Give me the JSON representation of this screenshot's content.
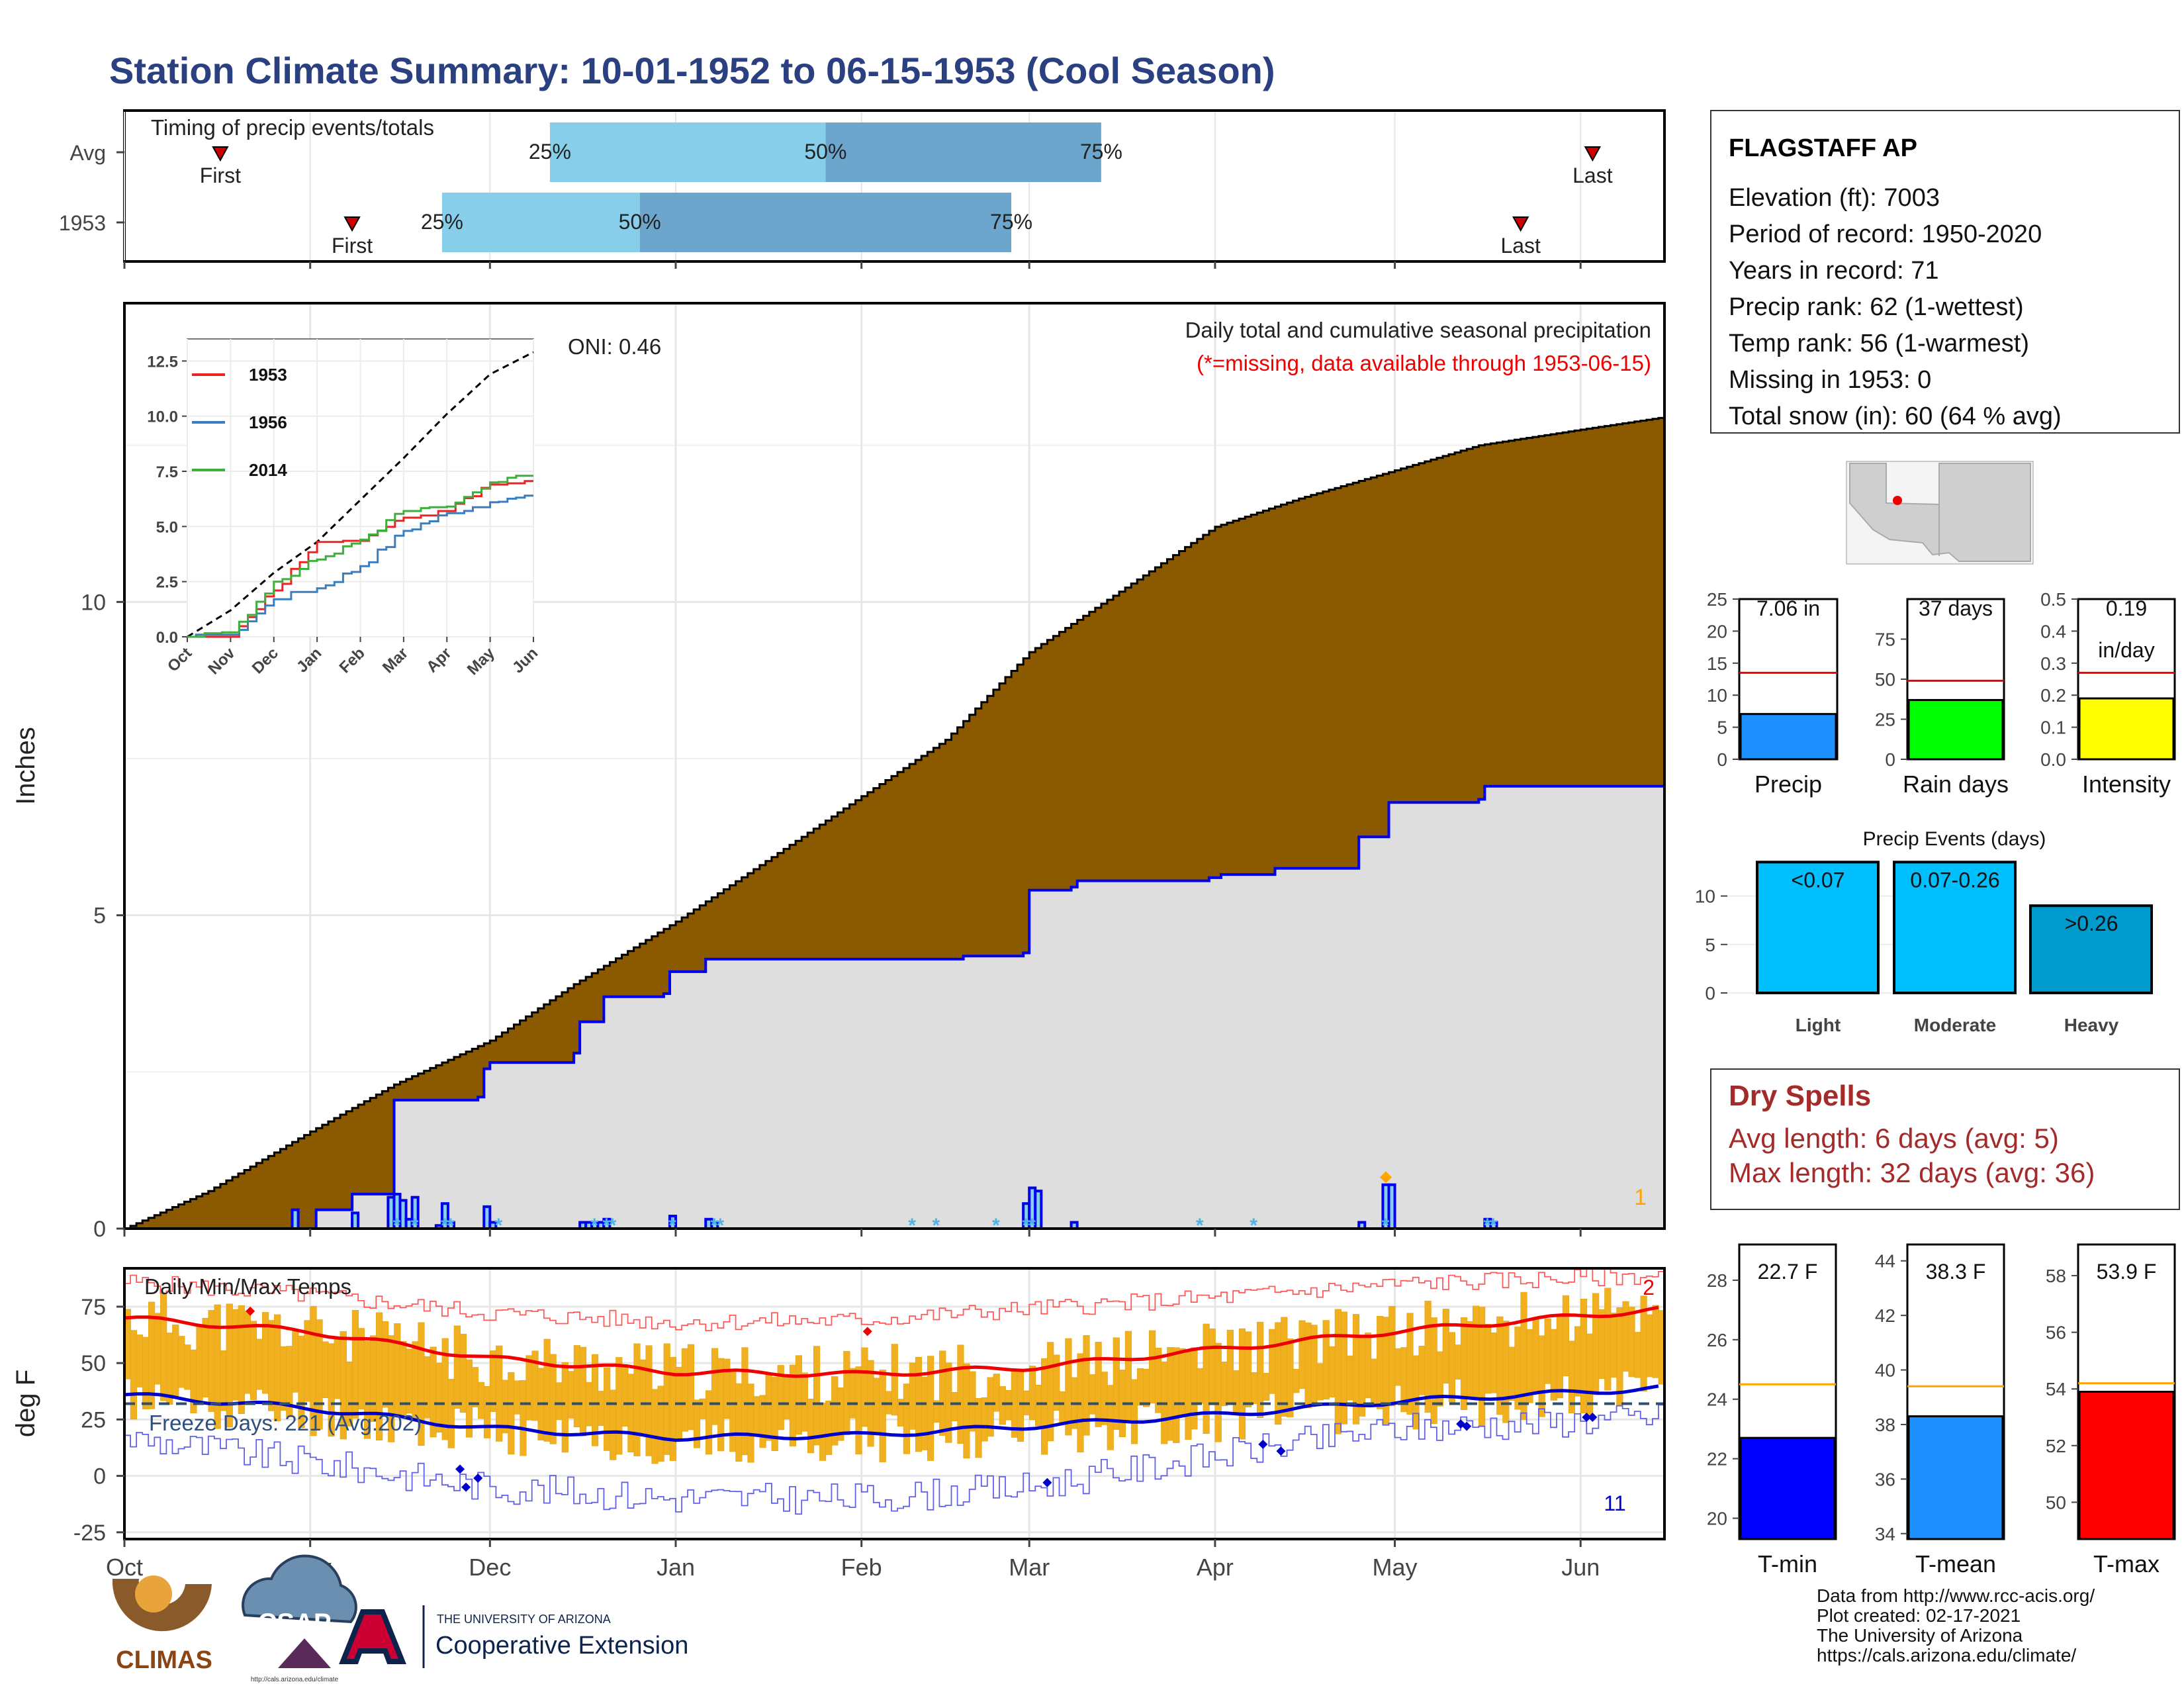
{
  "title": "Station Climate Summary: 10-01-1952 to 06-15-1953 (Cool Season)",
  "timing": {
    "heading": "Timing of precip events/totals",
    "rows": [
      {
        "label": "Avg",
        "first_day": 16,
        "last_day": 245,
        "q25": 71,
        "q50": 117,
        "q75": 163
      },
      {
        "label": "1953",
        "first_day": 38,
        "last_day": 233,
        "q25": 53,
        "q50": 86,
        "q75": 148
      }
    ],
    "first_label": "First",
    "last_label": "Last",
    "q25_label": "25%",
    "q50_label": "50%",
    "q75_label": "75%"
  },
  "precip": {
    "caption1": "Daily total and cumulative seasonal precipitation",
    "caption2": "(*=missing, data available through 1953-06-15)",
    "oni": "ONI: 0.46",
    "ylabel": "Inches",
    "corner_count": "1",
    "yticks": [
      "0",
      "5",
      "10"
    ]
  },
  "inset": {
    "legend": [
      "1953",
      "1956",
      "2014"
    ],
    "yticks": [
      "0.0",
      "2.5",
      "5.0",
      "7.5",
      "10.0",
      "12.5"
    ],
    "xticks": [
      "Oct",
      "Nov",
      "Dec",
      "Jan",
      "Feb",
      "Mar",
      "Apr",
      "May",
      "Jun"
    ]
  },
  "temps": {
    "heading": "Daily Min/Max Temps",
    "ylabel": "deg F",
    "freeze": "Freeze Days: 221 (Avg:202)",
    "count_hi": "2",
    "count_lo": "11",
    "yticks": [
      "-25",
      "0",
      "25",
      "50",
      "75"
    ]
  },
  "xaxis": [
    "Oct",
    "Nov",
    "Dec",
    "Jan",
    "Feb",
    "Mar",
    "Apr",
    "May",
    "Jun"
  ],
  "station": {
    "name": "FLAGSTAFF AP",
    "lines": [
      "Elevation (ft): 7003",
      "Period of record: 1950-2020",
      "Years in record: 71",
      "Precip rank: 62 (1-wettest)",
      "Temp rank: 56 (1-warmest)",
      "Missing in 1953: 0",
      "Total snow (in): 60 (64 % avg)"
    ]
  },
  "mini_bars": [
    {
      "value_label": "7.06 in",
      "label": "Precip",
      "value": 7.06,
      "avg": 13.5,
      "ymax": 25,
      "yticks": [
        "0",
        "5",
        "10",
        "15",
        "20",
        "25"
      ],
      "color": "#1E90FF"
    },
    {
      "value_label": "37 days",
      "label": "Rain days",
      "value": 37,
      "avg": 49,
      "ymax": 100,
      "yticks": [
        "0",
        "25",
        "50",
        "75"
      ],
      "color": "#00FF00"
    },
    {
      "value_label": "0.19",
      "value_label2": "in/day",
      "label": "Intensity",
      "value": 0.19,
      "avg": 0.27,
      "ymax": 0.5,
      "yticks": [
        "0.0",
        "0.1",
        "0.2",
        "0.3",
        "0.4",
        "0.5"
      ],
      "color": "#FFFF00"
    }
  ],
  "events": {
    "title": "Precip Events (days)",
    "bars": [
      {
        "label": "Light",
        "value": 13.5,
        "text": "<0.07",
        "color": "#00BFFF"
      },
      {
        "label": "Moderate",
        "value": 13.5,
        "text": "0.07-0.26",
        "color": "#00BFFF"
      },
      {
        "label": "Heavy",
        "value": 9,
        "text": ">0.26",
        "color": "#009ACD"
      }
    ],
    "yticks": [
      "0",
      "5",
      "10"
    ]
  },
  "dry": {
    "title": "Dry Spells",
    "avg": "Avg length: 6 days (avg: 5)",
    "max": "Max length: 32 days (avg: 36)"
  },
  "temp_bars": [
    {
      "value_label": "22.7 F",
      "label": "T-min",
      "value": 22.7,
      "avg": 24.5,
      "ymin": 19.3,
      "ymax": 29.2,
      "yticks": [
        "20",
        "22",
        "24",
        "26",
        "28"
      ],
      "color": "#0000FF"
    },
    {
      "value_label": "38.3 F",
      "label": "T-mean",
      "value": 38.3,
      "avg": 39.4,
      "ymin": 33.8,
      "ymax": 44.6,
      "yticks": [
        "34",
        "36",
        "38",
        "40",
        "42",
        "44"
      ],
      "color": "#1E90FF"
    },
    {
      "value_label": "53.9 F",
      "label": "T-max",
      "value": 53.9,
      "avg": 54.2,
      "ymin": 48.7,
      "ymax": 59.1,
      "yticks": [
        "50",
        "52",
        "54",
        "56",
        "58"
      ],
      "color": "#FF0000"
    }
  ],
  "footer": [
    "Data from http://www.rcc-acis.org/",
    "Plot created: 02-17-2021",
    "The University of Arizona",
    "https://cals.arizona.edu/climate/"
  ],
  "logos": {
    "climas": "CLIMAS",
    "csap": "CSAP",
    "csap_url": "http://cals.arizona.edu/climate",
    "ua_small": "THE UNIVERSITY OF ARIZONA",
    "ua_big": "Cooperative Extension"
  },
  "chart_data": {
    "type": "area",
    "title": "Station Climate Summary: 10-01-1952 to 06-15-1953 (Cool Season)",
    "x": [
      "1952-10-01",
      "1952-10-15",
      "1952-11-01",
      "1952-11-15",
      "1952-12-01",
      "1952-12-15",
      "1953-01-01",
      "1953-01-15",
      "1953-02-01",
      "1953-02-15",
      "1953-03-01",
      "1953-03-15",
      "1953-04-01",
      "1953-04-15",
      "1953-05-01",
      "1953-05-15",
      "1953-06-01",
      "1953-06-15"
    ],
    "series": [
      {
        "name": "",
        "values": [
          0.0,
          0.6,
          1.55,
          2.3,
          3.0,
          3.9,
          4.9,
          5.8,
          6.9,
          7.8,
          9.2,
          10.1,
          11.2,
          11.65,
          12.1,
          12.5,
          12.75,
          12.95
        ]
      },
      {
        "name": "1953",
        "values": [
          0.0,
          0.0,
          0.0,
          2.1,
          3.1,
          3.35,
          4.3,
          4.3,
          4.35,
          4.35,
          5.4,
          5.5,
          5.65,
          5.75,
          6.8,
          7.05,
          7.06,
          7.06
        ]
      }
    ],
    "ylabel": "Inches",
    "ylim": [
      0,
      13.5
    ],
    "inset": {
      "x": [
        "Oct",
        "Nov",
        "Dec",
        "Jan",
        "Feb",
        "Mar",
        "Apr",
        "May",
        "Jun"
      ],
      "series": [
        {
          "name": "",
          "values": [
            0.0,
            1.2,
            2.9,
            4.3,
            6.2,
            8.1,
            10.1,
            11.9,
            12.9
          ]
        },
        {
          "name": "1953",
          "values": [
            0.0,
            0.0,
            2.1,
            4.3,
            4.35,
            5.4,
            5.7,
            6.9,
            7.06
          ]
        },
        {
          "name": "1956",
          "values": [
            0.0,
            0.1,
            1.7,
            2.2,
            3.2,
            4.8,
            5.6,
            6.1,
            6.4
          ]
        },
        {
          "name": "2014",
          "values": [
            0.0,
            0.2,
            2.5,
            3.5,
            4.4,
            5.7,
            5.9,
            7.0,
            7.3
          ]
        }
      ],
      "ylim": [
        0,
        13.5
      ]
    },
    "temperature": {
      "ylabel": "deg F",
      "ylim": [
        -28,
        92
      ],
      "x": [
        "Oct",
        "Nov",
        "Dec",
        "Jan",
        "Feb",
        "Mar",
        "Apr",
        "May",
        "Jun"
      ],
      "avg_max": [
        70,
        64,
        52,
        46,
        45,
        48,
        56,
        64,
        74
      ],
      "avg_min": [
        36,
        30,
        21,
        17,
        18,
        22,
        27,
        33,
        39
      ],
      "record_max": [
        86,
        80,
        72,
        68,
        69,
        74,
        79,
        85,
        89
      ],
      "record_min": [
        17,
        6,
        -5,
        -10,
        -10,
        -5,
        9,
        21,
        26
      ],
      "freeze_line": 32
    }
  }
}
